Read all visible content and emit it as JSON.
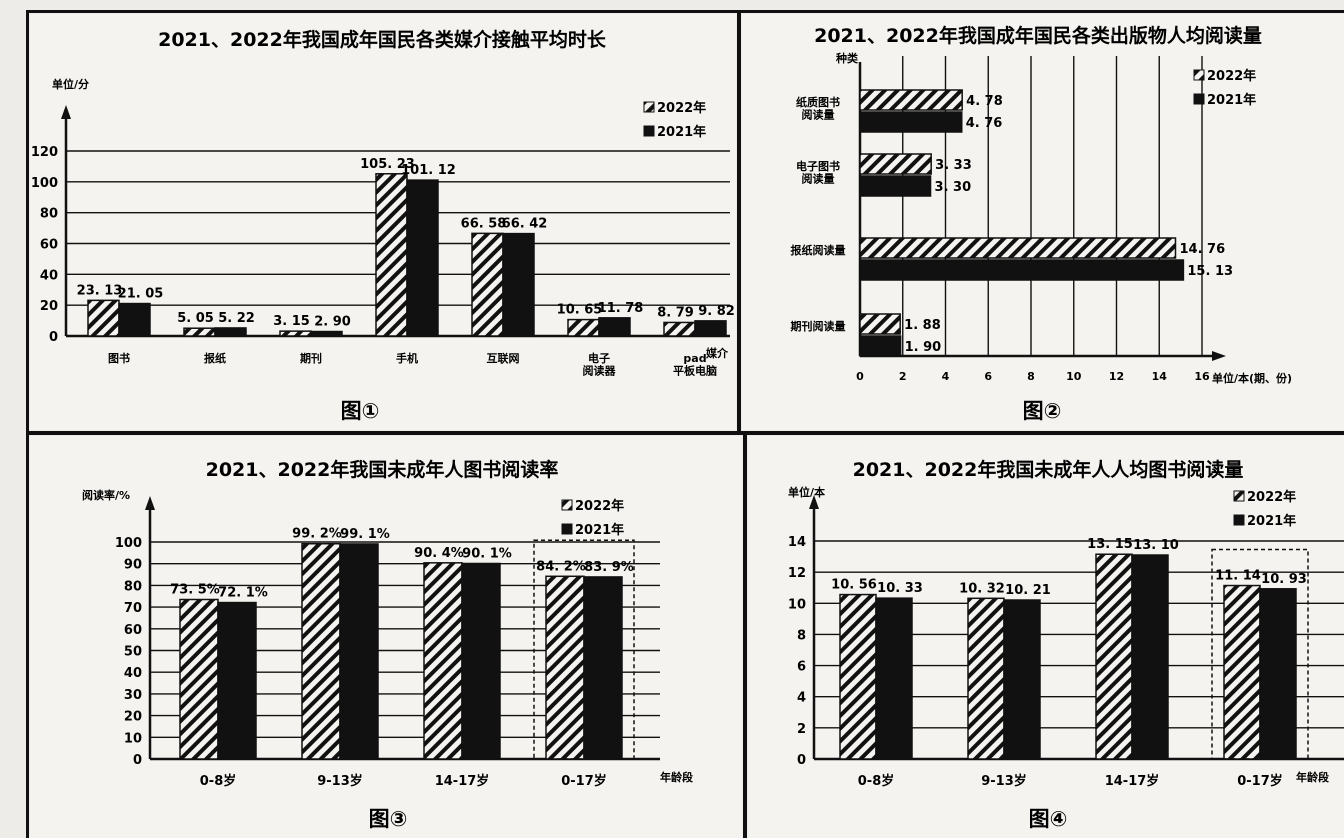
{
  "figures": [
    {
      "caption": "图①",
      "chart_data": {
        "type": "bar",
        "title": "2021、2022年我国成年国民各类媒介接触平均时长",
        "ylabel": "单位/分",
        "xlabel": "媒介",
        "ylim": [
          0,
          120
        ],
        "yticks": [
          "0",
          "20",
          "40",
          "60",
          "80",
          "100",
          "120"
        ],
        "categories": [
          "图书",
          "报纸",
          "期刊",
          "手机",
          "互联网",
          "电子\n阅读器",
          "pad\n平板电脑"
        ],
        "series": [
          {
            "name": "2022年",
            "values": [
              23.13,
              5.05,
              3.15,
              105.23,
              66.58,
              10.65,
              8.79
            ],
            "labels": [
              "23. 13",
              "5. 05",
              "3. 15",
              "105. 23",
              "66. 58",
              "10. 65",
              "8. 79"
            ]
          },
          {
            "name": "2021年",
            "values": [
              21.05,
              5.22,
              2.9,
              101.12,
              66.42,
              11.78,
              9.82
            ],
            "labels": [
              "21. 05",
              "5. 22",
              "2. 90",
              "101. 12",
              "66. 42",
              "11. 78",
              "9. 82"
            ]
          }
        ],
        "legend_position": "top-right"
      }
    },
    {
      "caption": "图②",
      "chart_data": {
        "type": "bar",
        "orientation": "horizontal",
        "title": "2021、2022年我国成年国民各类出版物人均阅读量",
        "ylabel": "种类",
        "xlabel": "单位/本(期、份)",
        "xlim": [
          0,
          16
        ],
        "xticks": [
          "0",
          "2",
          "4",
          "6",
          "8",
          "10",
          "12",
          "14",
          "16"
        ],
        "categories": [
          "纸质图书\n阅读量",
          "电子图书\n阅读量",
          "报纸阅读量",
          "期刊阅读量"
        ],
        "series": [
          {
            "name": "2022年",
            "values": [
              4.78,
              3.33,
              14.76,
              1.88
            ],
            "labels": [
              "4. 78",
              "3. 33",
              "14. 76",
              "1. 88"
            ]
          },
          {
            "name": "2021年",
            "values": [
              4.76,
              3.3,
              15.13,
              1.9
            ],
            "labels": [
              "4. 76",
              "3. 30",
              "15. 13",
              "1. 90"
            ]
          }
        ],
        "legend_position": "top-right"
      }
    },
    {
      "caption": "图③",
      "chart_data": {
        "type": "bar",
        "title": "2021、2022年我国未成年人图书阅读率",
        "ylabel": "阅读率/%",
        "xlabel": "年龄段",
        "ylim": [
          0,
          100
        ],
        "yticks": [
          "0",
          "10",
          "20",
          "30",
          "40",
          "50",
          "60",
          "70",
          "80",
          "90",
          "100"
        ],
        "categories": [
          "0-8岁",
          "9-13岁",
          "14-17岁",
          "0-17岁"
        ],
        "series": [
          {
            "name": "2022年",
            "values": [
              73.5,
              99.2,
              90.4,
              84.2
            ],
            "labels": [
              "73. 5%",
              "99. 2%",
              "90. 4%",
              "84. 2%"
            ]
          },
          {
            "name": "2021年",
            "values": [
              72.1,
              99.1,
              90.1,
              83.9
            ],
            "labels": [
              "72. 1%",
              "99. 1%",
              "90. 1%",
              "83. 9%"
            ]
          }
        ],
        "highlight_category": "0-17岁",
        "legend_position": "top-right"
      }
    },
    {
      "caption": "图④",
      "chart_data": {
        "type": "bar",
        "title": "2021、2022年我国未成年人人均图书阅读量",
        "ylabel": "单位/本",
        "xlabel": "年龄段",
        "ylim": [
          0,
          14
        ],
        "yticks": [
          "0",
          "2",
          "4",
          "6",
          "8",
          "10",
          "12",
          "14"
        ],
        "categories": [
          "0-8岁",
          "9-13岁",
          "14-17岁",
          "0-17岁"
        ],
        "series": [
          {
            "name": "2022年",
            "values": [
              10.56,
              10.32,
              13.15,
              11.14
            ],
            "labels": [
              "10. 56",
              "10. 32",
              "13. 15",
              "11. 14"
            ]
          },
          {
            "name": "2021年",
            "values": [
              10.33,
              10.21,
              13.1,
              10.93
            ],
            "labels": [
              "10. 33",
              "10. 21",
              "13. 10",
              "10. 93"
            ]
          }
        ],
        "highlight_category": "0-17岁",
        "legend_position": "top-right"
      }
    }
  ]
}
